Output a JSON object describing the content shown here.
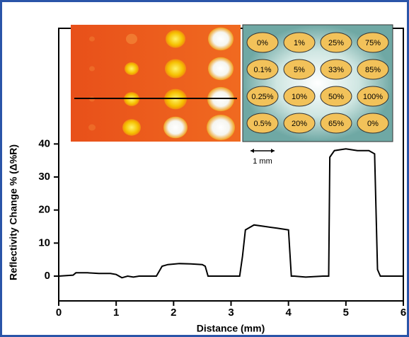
{
  "chart_data": {
    "type": "line",
    "x_label": "Distance (mm)",
    "y_label": "Reflectivity Change % (Δ%R)",
    "x": [
      0,
      0.25,
      0.3,
      0.5,
      0.7,
      0.9,
      1.0,
      1.1,
      1.2,
      1.3,
      1.4,
      1.7,
      1.8,
      1.9,
      2.1,
      2.3,
      2.5,
      2.55,
      2.6,
      2.9,
      3.15,
      3.2,
      3.25,
      3.4,
      3.6,
      3.8,
      4.0,
      4.05,
      4.1,
      4.3,
      4.6,
      4.7,
      4.72,
      4.8,
      5.0,
      5.2,
      5.4,
      5.5,
      5.55,
      5.6,
      5.8,
      6.0
    ],
    "values": [
      0,
      0.3,
      1,
      1,
      0.8,
      0.8,
      0.5,
      -0.5,
      0,
      -0.3,
      0,
      0,
      3,
      3.5,
      3.8,
      3.7,
      3.5,
      3,
      0,
      0,
      0,
      6,
      14,
      15.5,
      15,
      14.5,
      14,
      0,
      0,
      -0.3,
      0,
      0,
      36,
      38,
      38.5,
      38,
      38,
      37,
      2,
      0,
      0,
      0
    ],
    "color": "#000000",
    "xlim": [
      0,
      6
    ],
    "xticks": [
      0,
      1,
      2,
      3,
      4,
      5,
      6
    ],
    "ylim": [
      -7.5,
      75
    ],
    "yticks": [
      0,
      10,
      20,
      30,
      40
    ],
    "inset_labels": [
      [
        "0%",
        "1%",
        "25%",
        "75%"
      ],
      [
        "0.1%",
        "5%",
        "33%",
        "85%"
      ],
      [
        "0.25%",
        "10%",
        "50%",
        "100%"
      ],
      [
        "0.5%",
        "20%",
        "65%",
        "0%"
      ]
    ],
    "scale_label": "1 mm"
  }
}
